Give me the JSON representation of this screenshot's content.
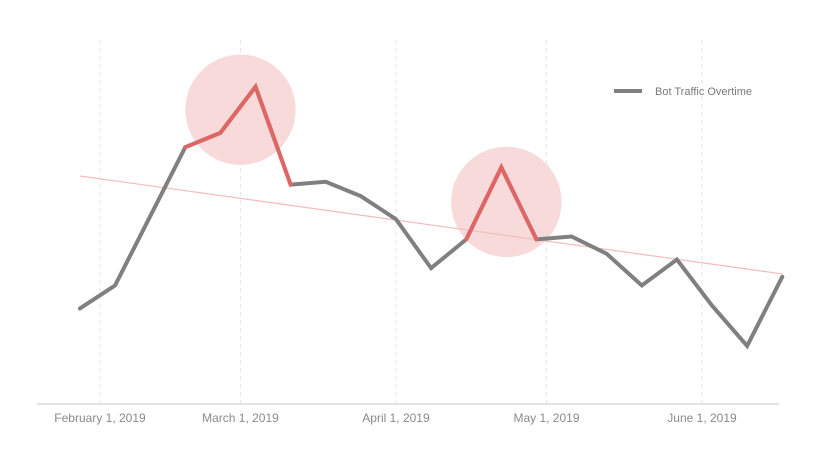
{
  "chart_data": {
    "type": "line",
    "title": "",
    "xlabel": "",
    "ylabel": "",
    "grid": "vertical dashed gridlines at each month",
    "legend_position": "top-right",
    "x_ticks": [
      {
        "label": "February 1, 2019",
        "date": "2019-02-01"
      },
      {
        "label": "March 1, 2019",
        "date": "2019-03-01"
      },
      {
        "label": "April 1, 2019",
        "date": "2019-04-01"
      },
      {
        "label": "May 1, 2019",
        "date": "2019-05-01"
      },
      {
        "label": "June 1, 2019",
        "date": "2019-06-01"
      }
    ],
    "x_range": [
      "2019-01-27",
      "2019-06-18"
    ],
    "y_range": [
      0,
      100
    ],
    "series": [
      {
        "name": "Bot Traffic Overtime",
        "color": "#808080",
        "highlight_color": "#e06666",
        "points": [
          {
            "x": "2019-01-28",
            "y": 29
          },
          {
            "x": "2019-02-04",
            "y": 37
          },
          {
            "x": "2019-02-11",
            "y": 61
          },
          {
            "x": "2019-02-18",
            "y": 85
          },
          {
            "x": "2019-02-25",
            "y": 90
          },
          {
            "x": "2019-03-04",
            "y": 106
          },
          {
            "x": "2019-03-11",
            "y": 72
          },
          {
            "x": "2019-03-18",
            "y": 73
          },
          {
            "x": "2019-03-25",
            "y": 68
          },
          {
            "x": "2019-04-01",
            "y": 60
          },
          {
            "x": "2019-04-08",
            "y": 43
          },
          {
            "x": "2019-04-15",
            "y": 53
          },
          {
            "x": "2019-04-22",
            "y": 78
          },
          {
            "x": "2019-04-29",
            "y": 53
          },
          {
            "x": "2019-05-06",
            "y": 54
          },
          {
            "x": "2019-05-13",
            "y": 48
          },
          {
            "x": "2019-05-20",
            "y": 37
          },
          {
            "x": "2019-05-27",
            "y": 46
          },
          {
            "x": "2019-06-03",
            "y": 30
          },
          {
            "x": "2019-06-10",
            "y": 16
          },
          {
            "x": "2019-06-17",
            "y": 40
          }
        ],
        "highlight_ranges": [
          [
            "2019-02-18",
            "2019-03-11"
          ],
          [
            "2019-04-15",
            "2019-04-29"
          ]
        ]
      }
    ],
    "trendline": {
      "color": "#f2bcbc",
      "start": {
        "x": "2019-01-28",
        "y": 75
      },
      "end": {
        "x": "2019-06-17",
        "y": 41
      }
    },
    "highlight_circles": [
      {
        "center": {
          "x": "2019-03-01",
          "y": 98
        },
        "radius_days": 11,
        "color": "#f9dada"
      },
      {
        "center": {
          "x": "2019-04-23",
          "y": 66
        },
        "radius_days": 11,
        "color": "#f9dada"
      }
    ]
  }
}
